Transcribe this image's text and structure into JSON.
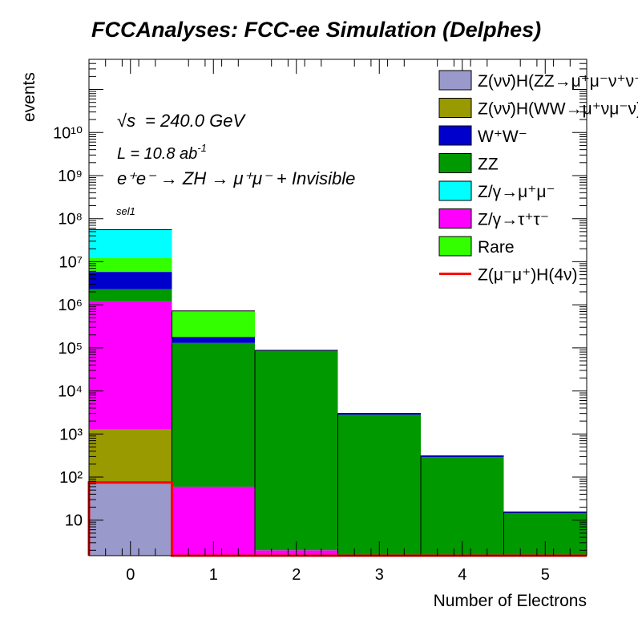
{
  "header": {
    "title": "FCCAnalyses: FCC-ee Simulation (Delphes)"
  },
  "annotations": {
    "sqrt_s": "= 240.0 GeV",
    "sqrt_s_symbol": "√s",
    "luminosity_prefix": "L = 10.8 ab",
    "luminosity_exponent": "-1",
    "process": "e⁺e⁻ → ZH → μ⁺μ⁻ + Invisible",
    "selection": "sel1"
  },
  "chart_data": {
    "type": "bar",
    "stacked": true,
    "log_y": true,
    "xlabel": "Number of Electrons",
    "ylabel": "events",
    "xlim": [
      -0.5,
      5.5
    ],
    "ylim": [
      1.5,
      500000000000
    ],
    "x_bin_centers": [
      0,
      1,
      2,
      3,
      4,
      5
    ],
    "x_tick_labels": [
      "0",
      "1",
      "2",
      "3",
      "4",
      "5"
    ],
    "y_tick_labels": [
      "10",
      "10²",
      "10³",
      "10⁴",
      "10⁵",
      "10⁶",
      "10⁷",
      "10⁸",
      "10⁹",
      "10¹⁰"
    ],
    "series": [
      {
        "name": "Z(νν̄)H(ZZ→μ⁺μ⁻ν⁺ν⁻)",
        "color": "#9999cc",
        "values": [
          70,
          0,
          0,
          0,
          0,
          0
        ]
      },
      {
        "name": "Z(νν̄)H(WW→μ⁺νμ⁻ν)",
        "color": "#999900",
        "values": [
          1200,
          0,
          0,
          0,
          0,
          0
        ]
      },
      {
        "name": "Rare",
        "color": "#33ff00",
        "values": [
          0,
          0,
          0,
          0,
          0,
          0
        ]
      },
      {
        "name": "Z/γ→τ⁺τ⁻",
        "color": "#ff00ff",
        "values": [
          1200000,
          60,
          2,
          1.5,
          1.5,
          1.5
        ]
      },
      {
        "name": "ZZ",
        "color": "#009900",
        "values": [
          1100000,
          130000,
          85000,
          2800,
          290,
          13
        ]
      },
      {
        "name": "W⁺W⁻",
        "color": "#0000cc",
        "values": [
          3500000,
          50000,
          3000,
          200,
          20,
          1
        ]
      },
      {
        "name": "Z/γ→μ⁺μ⁻",
        "color": "#00ffff",
        "values": [
          0,
          0,
          0,
          0,
          0,
          0
        ]
      },
      {
        "name": "Rare",
        "color": "#33ff00",
        "values": [
          6500000,
          540000,
          0,
          0,
          0,
          0
        ]
      },
      {
        "name": "Z/γ→μ⁺μ⁻",
        "color": "#00ffff",
        "values": [
          43000000,
          0,
          0,
          0,
          0,
          0
        ]
      }
    ],
    "signal": {
      "name": "Z(μ⁻μ⁺)H(4ν)",
      "color": "#ff0000",
      "values": [
        75,
        1.5,
        1.5,
        1.5,
        1.5,
        1.5
      ]
    },
    "legend": {
      "position": "top-right",
      "entries": [
        {
          "label": "Z(νν̄)H(ZZ→μ⁺μ⁻ν⁺ν⁻)",
          "color": "#9999cc",
          "kind": "box"
        },
        {
          "label": "Z(νν̄)H(WW→μ⁺νμ⁻ν)",
          "color": "#999900",
          "kind": "box"
        },
        {
          "label": "W⁺W⁻",
          "color": "#0000cc",
          "kind": "box"
        },
        {
          "label": "ZZ",
          "color": "#009900",
          "kind": "box"
        },
        {
          "label": "Z/γ→μ⁺μ⁻",
          "color": "#00ffff",
          "kind": "box"
        },
        {
          "label": "Z/γ→τ⁺τ⁻",
          "color": "#ff00ff",
          "kind": "box"
        },
        {
          "label": "Rare",
          "color": "#33ff00",
          "kind": "box"
        },
        {
          "label": "Z(μ⁻μ⁺)H(4ν)",
          "color": "#ff0000",
          "kind": "line"
        }
      ]
    },
    "grid": false
  }
}
